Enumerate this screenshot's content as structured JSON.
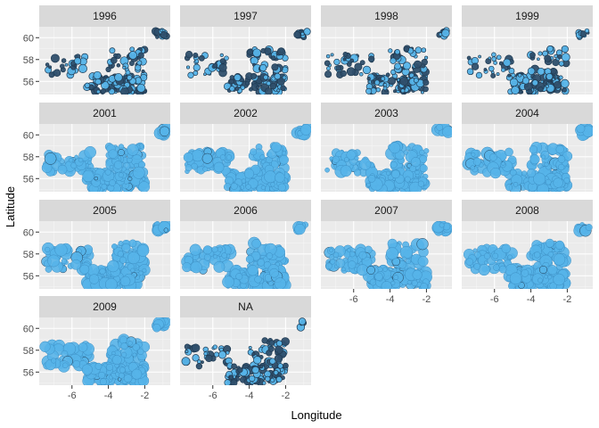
{
  "chart_data": {
    "type": "scatter",
    "facet_by": "year",
    "panels": [
      "1996",
      "1997",
      "1998",
      "1999",
      "2001",
      "2002",
      "2003",
      "2004",
      "2005",
      "2006",
      "2007",
      "2008",
      "2009",
      "NA"
    ],
    "xlabel": "Longitude",
    "ylabel": "Latitude",
    "xlim": [
      -7.8,
      -0.6
    ],
    "ylim": [
      54.8,
      61.0
    ],
    "x_ticks": [
      -6,
      -4,
      -2
    ],
    "y_ticks": [
      56,
      58,
      60
    ],
    "grid": true,
    "legend": "none",
    "colors": {
      "panel_background": "#ebebeb",
      "strip_background": "#d9d9d9",
      "grid": "#ffffff",
      "point_fill": "#56b4e9",
      "point_outline": "#1f3a52",
      "point_dark": "#2f4f6b"
    },
    "point_clusters": [
      {
        "name": "shetland",
        "lon": [
          -1.4,
          -0.8
        ],
        "lat": [
          60.0,
          60.7
        ]
      },
      {
        "name": "west_coast",
        "lon": [
          -7.5,
          -5.0
        ],
        "lat": [
          56.5,
          58.5
        ]
      },
      {
        "name": "central_belt",
        "lon": [
          -5.2,
          -2.0
        ],
        "lat": [
          55.0,
          56.6
        ]
      },
      {
        "name": "north_east",
        "lon": [
          -4.0,
          -2.0
        ],
        "lat": [
          56.8,
          59.0
        ]
      }
    ]
  }
}
